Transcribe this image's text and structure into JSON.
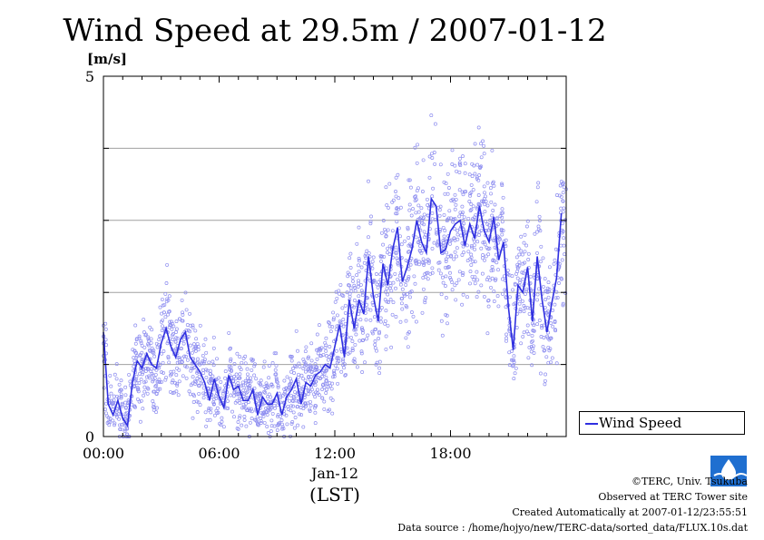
{
  "header": {
    "title": "Wind Speed at 29.5m / 2007-01-12",
    "unit": "[m/s]"
  },
  "legend": {
    "label": "Wind Speed"
  },
  "xaxis": {
    "sub_label": "Jan-12",
    "tz_label": "(LST)"
  },
  "footer": {
    "copyright": "©TERC, Univ. Tsukuba",
    "observed": "Observed at TERC Tower site",
    "created": "Created Automatically at 2007-01-12/23:55:51",
    "source": "Data source : /home/hojyo/new/TERC-data/sorted_data/FLUX.10s.dat"
  },
  "colors": {
    "series": "#2f2fe0",
    "points": "#8f8ff0",
    "grid": "#a0a0a0",
    "logo": "#1f6fd0"
  },
  "logo_icon": "terc-logo-icon",
  "chart_data": {
    "type": "line",
    "title": "Wind Speed at 29.5m / 2007-01-12",
    "ylabel": "[m/s]",
    "xlabel": "(LST)",
    "ylim": [
      0,
      5
    ],
    "xlim": [
      0,
      24
    ],
    "yticks": [
      "0",
      "5"
    ],
    "xticks": [
      "00:00",
      "06:00",
      "12:00",
      "18:00"
    ],
    "grid": true,
    "legend_position": "bottom-right, outside plot",
    "series": [
      {
        "name": "Wind Speed",
        "style": "line with scattered 10-second samples",
        "x": [
          0.0,
          0.25,
          0.5,
          0.75,
          1.0,
          1.25,
          1.5,
          1.75,
          2.0,
          2.25,
          2.5,
          2.75,
          3.0,
          3.25,
          3.5,
          3.75,
          4.0,
          4.25,
          4.5,
          4.75,
          5.0,
          5.25,
          5.5,
          5.75,
          6.0,
          6.25,
          6.5,
          6.75,
          7.0,
          7.25,
          7.5,
          7.75,
          8.0,
          8.25,
          8.5,
          8.75,
          9.0,
          9.25,
          9.5,
          9.75,
          10.0,
          10.25,
          10.5,
          10.75,
          11.0,
          11.25,
          11.5,
          11.75,
          12.0,
          12.25,
          12.5,
          12.75,
          13.0,
          13.25,
          13.5,
          13.75,
          14.0,
          14.25,
          14.5,
          14.75,
          15.0,
          15.25,
          15.5,
          15.75,
          16.0,
          16.25,
          16.5,
          16.75,
          17.0,
          17.25,
          17.5,
          17.75,
          18.0,
          18.25,
          18.5,
          18.75,
          19.0,
          19.25,
          19.5,
          19.75,
          20.0,
          20.25,
          20.5,
          20.75,
          21.0,
          21.25,
          21.5,
          21.75,
          22.0,
          22.25,
          22.5,
          22.75,
          23.0,
          23.25,
          23.5,
          23.75
        ],
        "values": [
          1.45,
          0.45,
          0.3,
          0.5,
          0.25,
          0.15,
          0.75,
          1.05,
          0.95,
          1.15,
          1.0,
          0.95,
          1.3,
          1.5,
          1.25,
          1.1,
          1.35,
          1.45,
          1.1,
          1.0,
          0.9,
          0.75,
          0.5,
          0.8,
          0.55,
          0.4,
          0.85,
          0.65,
          0.7,
          0.5,
          0.5,
          0.65,
          0.3,
          0.55,
          0.45,
          0.45,
          0.6,
          0.3,
          0.55,
          0.65,
          0.8,
          0.45,
          0.75,
          0.7,
          0.85,
          0.9,
          1.0,
          0.95,
          1.25,
          1.55,
          1.1,
          1.9,
          1.5,
          1.9,
          1.7,
          2.5,
          1.95,
          1.6,
          2.4,
          2.1,
          2.6,
          2.9,
          2.15,
          2.35,
          2.6,
          3.0,
          2.7,
          2.55,
          3.3,
          3.2,
          2.55,
          2.6,
          2.85,
          2.95,
          3.0,
          2.65,
          2.95,
          2.75,
          3.2,
          2.85,
          2.7,
          3.05,
          2.45,
          2.7,
          1.8,
          1.2,
          2.1,
          2.0,
          2.35,
          1.6,
          2.5,
          1.9,
          1.45,
          1.85,
          2.2,
          3.1
        ]
      }
    ]
  }
}
